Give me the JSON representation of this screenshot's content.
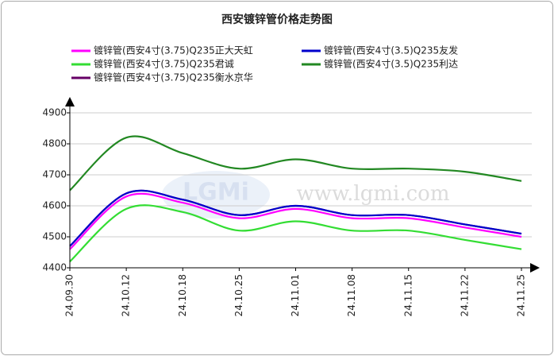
{
  "chart_data": {
    "type": "line",
    "title": "西安镀锌管价格走势图",
    "watermark": "www.lgmi.com",
    "watermark_logo": "LGMi",
    "categories": [
      "24.09.30",
      "24.10.12",
      "24.10.18",
      "24.10.25",
      "24.11.01",
      "24.11.08",
      "24.11.15",
      "24.11.22",
      "24.11.25"
    ],
    "series": [
      {
        "name": "镀锌管(西安4寸(3.75)Q235正大天虹",
        "color": "#ff00ff",
        "values": [
          4460,
          4630,
          4610,
          4560,
          4590,
          4560,
          4560,
          4530,
          4500
        ]
      },
      {
        "name": "镀锌管(西安4寸(3.5)Q235友发",
        "color": "#0000cc",
        "values": [
          4470,
          4640,
          4620,
          4570,
          4600,
          4570,
          4570,
          4540,
          4510
        ]
      },
      {
        "name": "镀锌管(西安4寸(3.75)Q235君诚",
        "color": "#33dd33",
        "values": [
          4420,
          4590,
          4580,
          4520,
          4550,
          4520,
          4520,
          4490,
          4460
        ]
      },
      {
        "name": "镀锌管(西安4寸(3.5)Q235利达",
        "color": "#228822",
        "values": [
          4650,
          4820,
          4770,
          4720,
          4750,
          4720,
          4720,
          4710,
          4680
        ]
      },
      {
        "name": "镀锌管(西安4寸(3.75)Q235衡水京华",
        "color": "#660066",
        "values": [
          4470,
          4640,
          4620,
          4570,
          4600,
          4570,
          4570,
          4540,
          4510
        ]
      }
    ],
    "ylim": [
      4400,
      4900
    ],
    "yticks": [
      4400,
      4500,
      4600,
      4700,
      4800,
      4900
    ],
    "grid": true,
    "legend": "top",
    "smooth": true
  }
}
